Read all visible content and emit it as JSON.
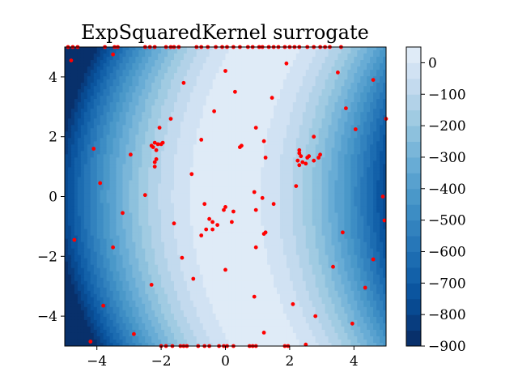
{
  "chart_data": {
    "type": "heatmap",
    "title": "ExpSquaredKernel surrogate",
    "xlabel": "",
    "ylabel": "",
    "xlim": [
      -5,
      5
    ],
    "ylim": [
      -5,
      5
    ],
    "x_ticks": [
      -4,
      -2,
      0,
      2,
      4
    ],
    "y_ticks": [
      -4,
      -2,
      0,
      2,
      4
    ],
    "x_tick_labels": [
      "−4",
      "−2",
      "0",
      "2",
      "4"
    ],
    "y_tick_labels": [
      "−4",
      "−2",
      "0",
      "2",
      "4"
    ],
    "colormap": "Blues_r",
    "colorbar": {
      "vmin": -900,
      "vmax": 50,
      "ticks": [
        0,
        -100,
        -200,
        -300,
        -400,
        -500,
        -600,
        -700,
        -800,
        -900
      ],
      "tick_labels": [
        "0",
        "−100",
        "−200",
        "−300",
        "−400",
        "−500",
        "−600",
        "−700",
        "−800",
        "−900"
      ]
    },
    "contour_levels": [
      -900,
      -850,
      -800,
      -750,
      -700,
      -650,
      -600,
      -550,
      -500,
      -450,
      -400,
      -350,
      -300,
      -250,
      -200,
      -150,
      -100,
      -50,
      0,
      50
    ],
    "level_colors": [
      "#08306b",
      "#083d7f",
      "#084a91",
      "#0b559f",
      "#1361a9",
      "#1c6cb1",
      "#2777b8",
      "#3282be",
      "#3d8dc4",
      "#4a98c9",
      "#58a1cf",
      "#68acd5",
      "#7ab6d9",
      "#8dc1dd",
      "#a0cbe2",
      "#b2d2e8",
      "#c3daee",
      "#d1e2f3",
      "#dfebf7",
      "#ebf3fb"
    ],
    "surface_description": "value falls off with distance from the curved valley x = 0.05*y^2; surface goes to about -900 at the left/right edges",
    "samples": {
      "color": "#ff0000",
      "points": [
        [
          -4.9,
          5.0
        ],
        [
          -4.75,
          5.0
        ],
        [
          -4.6,
          5.0
        ],
        [
          -3.75,
          5.0
        ],
        [
          -3.45,
          5.0
        ],
        [
          -3.35,
          5.0
        ],
        [
          -2.5,
          5.0
        ],
        [
          -2.35,
          5.0
        ],
        [
          -2.2,
          5.0
        ],
        [
          -1.85,
          5.0
        ],
        [
          -1.7,
          5.0
        ],
        [
          -1.6,
          5.0
        ],
        [
          -1.45,
          5.0
        ],
        [
          -0.9,
          5.0
        ],
        [
          -0.75,
          5.0
        ],
        [
          -0.55,
          5.0
        ],
        [
          -0.3,
          5.0
        ],
        [
          -0.1,
          5.0
        ],
        [
          0.05,
          5.0
        ],
        [
          0.25,
          5.0
        ],
        [
          0.45,
          5.0
        ],
        [
          0.7,
          5.0
        ],
        [
          0.85,
          5.0
        ],
        [
          1.05,
          5.0
        ],
        [
          1.15,
          5.0
        ],
        [
          1.35,
          5.0
        ],
        [
          1.5,
          5.0
        ],
        [
          1.65,
          5.0
        ],
        [
          1.85,
          5.0
        ],
        [
          2.0,
          5.0
        ],
        [
          2.15,
          5.0
        ],
        [
          2.3,
          5.0
        ],
        [
          2.55,
          5.0
        ],
        [
          2.75,
          5.0
        ],
        [
          2.95,
          5.0
        ],
        [
          3.1,
          5.0
        ],
        [
          3.25,
          5.0
        ],
        [
          3.6,
          5.0
        ],
        [
          -4.8,
          4.55
        ],
        [
          -3.5,
          4.75
        ],
        [
          1.9,
          4.45
        ],
        [
          0.0,
          4.2
        ],
        [
          3.5,
          4.15
        ],
        [
          4.6,
          3.9
        ],
        [
          -1.3,
          3.8
        ],
        [
          0.3,
          3.5
        ],
        [
          1.45,
          3.3
        ],
        [
          -0.35,
          2.85
        ],
        [
          3.75,
          2.95
        ],
        [
          -1.7,
          2.6
        ],
        [
          5.0,
          2.6
        ],
        [
          -2.05,
          2.3
        ],
        [
          0.95,
          2.3
        ],
        [
          4.05,
          2.25
        ],
        [
          2.75,
          2.0
        ],
        [
          -0.75,
          1.9
        ],
        [
          1.2,
          1.85
        ],
        [
          -2.2,
          1.8
        ],
        [
          -2.1,
          1.75
        ],
        [
          -2.0,
          1.75
        ],
        [
          -1.95,
          1.8
        ],
        [
          -2.3,
          1.7
        ],
        [
          -2.25,
          1.65
        ],
        [
          -2.15,
          1.55
        ],
        [
          0.5,
          1.7
        ],
        [
          0.45,
          1.65
        ],
        [
          2.3,
          1.55
        ],
        [
          2.3,
          1.45
        ],
        [
          2.35,
          1.35
        ],
        [
          2.55,
          1.3
        ],
        [
          2.6,
          1.35
        ],
        [
          2.95,
          1.4
        ],
        [
          2.9,
          1.3
        ],
        [
          2.25,
          1.2
        ],
        [
          2.4,
          1.15
        ],
        [
          2.5,
          1.1
        ],
        [
          2.3,
          1.05
        ],
        [
          2.75,
          1.2
        ],
        [
          1.25,
          1.3
        ],
        [
          -4.1,
          1.6
        ],
        [
          -2.95,
          1.4
        ],
        [
          -2.15,
          1.25
        ],
        [
          -2.2,
          1.15
        ],
        [
          -2.2,
          1.0
        ],
        [
          -1.05,
          0.75
        ],
        [
          -3.9,
          0.45
        ],
        [
          2.2,
          0.35
        ],
        [
          0.9,
          0.15
        ],
        [
          -2.5,
          0.05
        ],
        [
          1.15,
          -0.05
        ],
        [
          4.9,
          0.0
        ],
        [
          -0.65,
          -0.25
        ],
        [
          0.0,
          -0.35
        ],
        [
          -0.05,
          -0.45
        ],
        [
          0.25,
          -0.5
        ],
        [
          0.95,
          -0.45
        ],
        [
          -0.4,
          -0.85
        ],
        [
          -0.5,
          -0.75
        ],
        [
          1.5,
          -0.25
        ],
        [
          0.2,
          -0.85
        ],
        [
          -3.2,
          -0.55
        ],
        [
          -1.6,
          -0.9
        ],
        [
          -0.4,
          -1.1
        ],
        [
          -0.25,
          -0.95
        ],
        [
          -0.6,
          -1.1
        ],
        [
          1.25,
          -1.2
        ],
        [
          1.2,
          -1.25
        ],
        [
          -0.75,
          -1.3
        ],
        [
          3.65,
          -1.2
        ],
        [
          4.95,
          -0.8
        ],
        [
          -4.7,
          -1.45
        ],
        [
          -3.5,
          -1.7
        ],
        [
          0.95,
          -1.7
        ],
        [
          -1.35,
          -2.05
        ],
        [
          4.6,
          -2.1
        ],
        [
          0.0,
          -2.45
        ],
        [
          3.35,
          -2.35
        ],
        [
          -1.0,
          -2.75
        ],
        [
          -2.3,
          -2.95
        ],
        [
          4.35,
          -3.05
        ],
        [
          0.9,
          -3.35
        ],
        [
          2.1,
          -3.6
        ],
        [
          -3.8,
          -3.65
        ],
        [
          2.8,
          -4.0
        ],
        [
          3.95,
          -4.25
        ],
        [
          -2.85,
          -4.6
        ],
        [
          1.2,
          -4.55
        ],
        [
          -4.2,
          -4.85
        ],
        [
          2.5,
          -4.95
        ],
        [
          -2.0,
          -5.0
        ],
        [
          -1.85,
          -5.0
        ],
        [
          -1.65,
          -5.0
        ],
        [
          -1.4,
          -5.0
        ],
        [
          -1.3,
          -5.0
        ],
        [
          -1.2,
          -5.0
        ],
        [
          -0.85,
          -5.0
        ],
        [
          -0.65,
          -5.0
        ],
        [
          -0.5,
          -5.0
        ],
        [
          -0.2,
          -5.0
        ],
        [
          -0.05,
          -5.0
        ],
        [
          0.05,
          -5.0
        ],
        [
          0.25,
          -5.0
        ],
        [
          0.75,
          -5.0
        ],
        [
          0.85,
          -5.0
        ],
        [
          0.95,
          -5.0
        ],
        [
          1.85,
          -5.0
        ],
        [
          1.95,
          -5.0
        ]
      ]
    }
  }
}
